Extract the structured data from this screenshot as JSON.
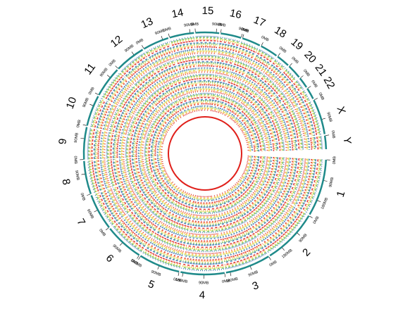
{
  "chart_data": {
    "type": "circos",
    "chromosomes": [
      {
        "name": "1",
        "size": 249,
        "ticks": [
          {
            "value": 0,
            "label": "0MB"
          },
          {
            "value": 90,
            "label": "90MB"
          },
          {
            "value": 180,
            "label": "180MB"
          }
        ]
      },
      {
        "name": "2",
        "size": 243,
        "ticks": [
          {
            "value": 0,
            "label": "0MB"
          },
          {
            "value": 90,
            "label": "90MB"
          },
          {
            "value": 180,
            "label": "180MB"
          }
        ]
      },
      {
        "name": "3",
        "size": 198,
        "ticks": [
          {
            "value": 0,
            "label": "0MB"
          },
          {
            "value": 90,
            "label": "90MB"
          },
          {
            "value": 180,
            "label": "180MB"
          }
        ]
      },
      {
        "name": "4",
        "size": 191,
        "ticks": [
          {
            "value": 0,
            "label": "0MB"
          },
          {
            "value": 90,
            "label": "90MB"
          },
          {
            "value": 180,
            "label": "180MB"
          }
        ]
      },
      {
        "name": "5",
        "size": 181,
        "ticks": [
          {
            "value": 0,
            "label": "0MB"
          },
          {
            "value": 90,
            "label": "90MB"
          },
          {
            "value": 180,
            "label": "180MB"
          }
        ]
      },
      {
        "name": "6",
        "size": 171,
        "ticks": [
          {
            "value": 0,
            "label": "0MB"
          },
          {
            "value": 90,
            "label": "90MB"
          }
        ]
      },
      {
        "name": "7",
        "size": 159,
        "ticks": [
          {
            "value": 0,
            "label": "0MB"
          },
          {
            "value": 90,
            "label": "90MB"
          }
        ]
      },
      {
        "name": "8",
        "size": 146,
        "ticks": [
          {
            "value": 0,
            "label": "0MB"
          },
          {
            "value": 90,
            "label": "90MB"
          }
        ]
      },
      {
        "name": "9",
        "size": 141,
        "ticks": [
          {
            "value": 0,
            "label": "0MB"
          },
          {
            "value": 90,
            "label": "90MB"
          }
        ]
      },
      {
        "name": "10",
        "size": 136,
        "ticks": [
          {
            "value": 0,
            "label": "0MB"
          },
          {
            "value": 90,
            "label": "90MB"
          }
        ]
      },
      {
        "name": "11",
        "size": 135,
        "ticks": [
          {
            "value": 0,
            "label": "0MB"
          },
          {
            "value": 90,
            "label": "90MB"
          }
        ]
      },
      {
        "name": "12",
        "size": 134,
        "ticks": [
          {
            "value": 0,
            "label": "0MB"
          },
          {
            "value": 90,
            "label": "90MB"
          }
        ]
      },
      {
        "name": "13",
        "size": 115,
        "ticks": [
          {
            "value": 0,
            "label": "0MB"
          },
          {
            "value": 90,
            "label": "90MB"
          }
        ]
      },
      {
        "name": "14",
        "size": 107,
        "ticks": [
          {
            "value": 0,
            "label": "0MB"
          },
          {
            "value": 90,
            "label": "90MB"
          }
        ]
      },
      {
        "name": "15",
        "size": 103,
        "ticks": [
          {
            "value": 0,
            "label": "0MB"
          },
          {
            "value": 90,
            "label": "90MB"
          }
        ]
      },
      {
        "name": "16",
        "size": 90,
        "ticks": [
          {
            "value": 0,
            "label": "0MB"
          },
          {
            "value": 90,
            "label": "90MB"
          }
        ]
      },
      {
        "name": "17",
        "size": 81,
        "ticks": [
          {
            "value": 0,
            "label": "0MB"
          }
        ]
      },
      {
        "name": "18",
        "size": 78,
        "ticks": [
          {
            "value": 0,
            "label": "0MB"
          }
        ]
      },
      {
        "name": "19",
        "size": 59,
        "ticks": [
          {
            "value": 0,
            "label": "0MB"
          }
        ]
      },
      {
        "name": "20",
        "size": 63,
        "ticks": [
          {
            "value": 0,
            "label": "0MB"
          }
        ]
      },
      {
        "name": "21",
        "size": 48,
        "ticks": [
          {
            "value": 0,
            "label": "0MB"
          }
        ]
      },
      {
        "name": "22",
        "size": 51,
        "ticks": [
          {
            "value": 0,
            "label": "0MB"
          }
        ]
      },
      {
        "name": "X",
        "size": 155,
        "ticks": [
          {
            "value": 0,
            "label": "0MB"
          },
          {
            "value": 90,
            "label": "90MB"
          }
        ]
      },
      {
        "name": "Y",
        "size": 59,
        "ticks": [
          {
            "value": 0,
            "label": "0MB"
          }
        ]
      }
    ]
  }
}
